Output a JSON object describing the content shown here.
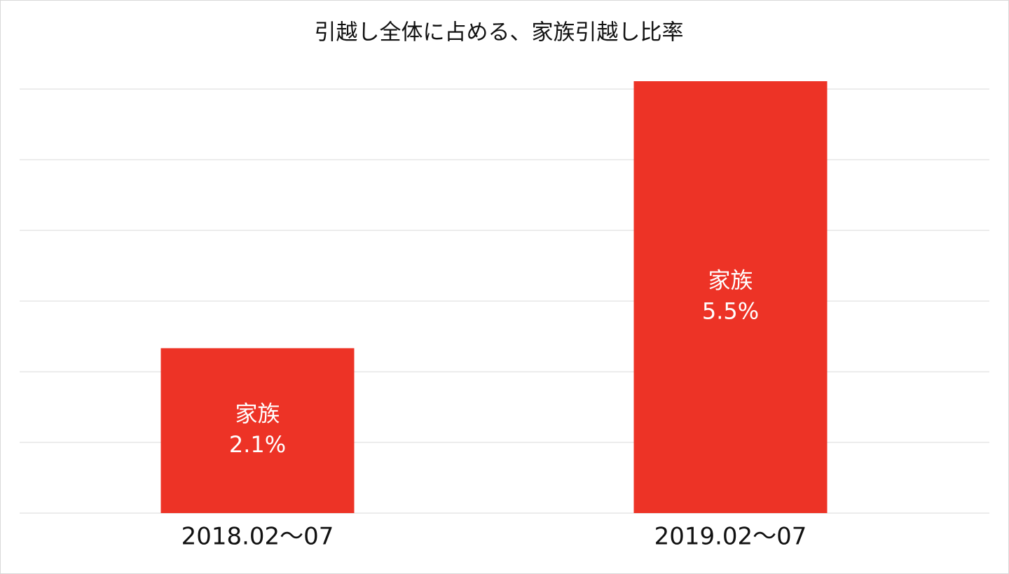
{
  "chart_data": {
    "type": "bar",
    "title": "引越し全体に占める、家族引越し比率",
    "categories": [
      "2018.02〜07",
      "2019.02〜07"
    ],
    "series": [
      {
        "name": "家族",
        "color": "#ed3326",
        "values": [
          2.1,
          5.5
        ],
        "value_labels": [
          "2.1%",
          "5.5%"
        ]
      }
    ],
    "ylim": [
      0,
      5.5
    ],
    "yticks": [
      0,
      0.9,
      1.8,
      2.7,
      3.6,
      4.5,
      5.4
    ],
    "grid": true
  }
}
